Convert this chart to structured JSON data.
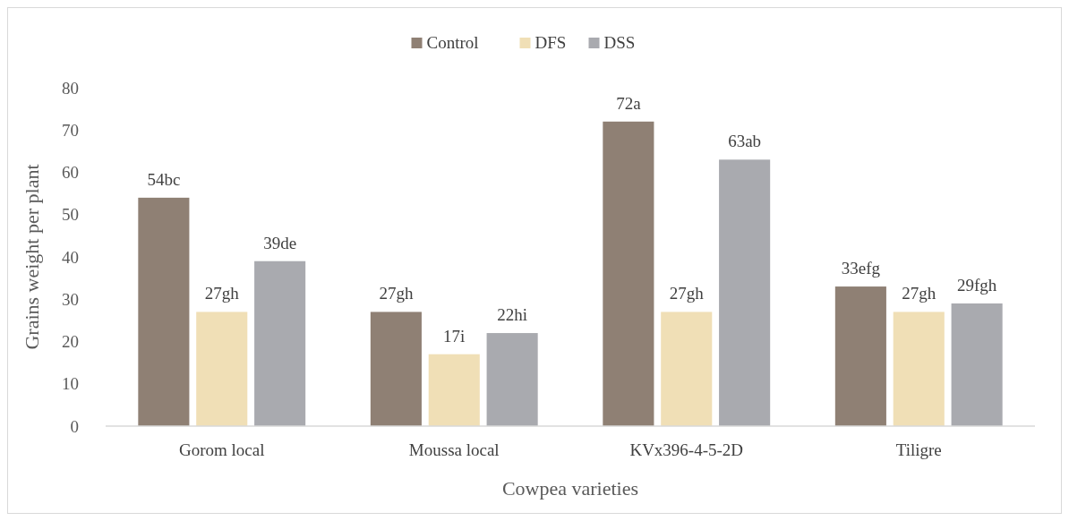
{
  "chart_data": {
    "type": "bar",
    "xlabel": "Cowpea varieties",
    "ylabel": "Grains weight per plant",
    "categories": [
      "Gorom local",
      "Moussa local",
      "KVx396-4-5-2D",
      "Tiligre"
    ],
    "series": [
      {
        "name": "Control",
        "color": "#8f8074",
        "values": [
          54,
          27,
          72,
          33
        ],
        "value_labels": [
          "54bc",
          "27gh",
          "72a",
          "33efg"
        ]
      },
      {
        "name": "DFS",
        "color": "#f0dfb6",
        "values": [
          27,
          17,
          27,
          27
        ],
        "value_labels": [
          "27gh",
          "17i",
          "27gh",
          "27gh"
        ]
      },
      {
        "name": "DSS",
        "color": "#a9aaaf",
        "values": [
          39,
          22,
          63,
          29
        ],
        "value_labels": [
          "39de",
          "22hi",
          "63ab",
          "29fgh"
        ]
      }
    ],
    "ylim": [
      0,
      80
    ],
    "yticks": [
      0,
      10,
      20,
      30,
      40,
      50,
      60,
      70,
      80
    ],
    "grid": false,
    "legend": "top"
  }
}
